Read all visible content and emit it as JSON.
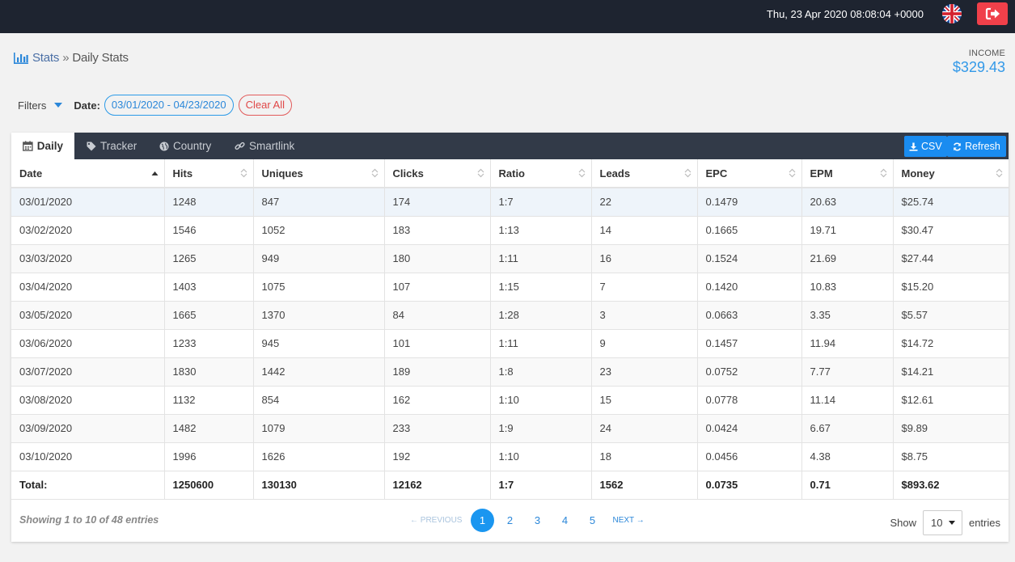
{
  "topbar": {
    "datetime": "Thu, 23 Apr 2020 08:08:04 +0000",
    "flag_icon": "uk-flag-icon",
    "logout_icon": "sign-out-icon"
  },
  "breadcrumb": {
    "icon": "bar-chart-icon",
    "root": "Stats",
    "separator": "»",
    "current": "Daily Stats"
  },
  "income": {
    "label": "INCOME",
    "value": "$329.43"
  },
  "filters": {
    "label": "Filters",
    "date_label": "Date:",
    "date_range": "03/01/2020 - 04/23/2020",
    "clear_all": "Clear All"
  },
  "tabs": [
    {
      "label": "Daily",
      "icon": "calendar-icon"
    },
    {
      "label": "Tracker",
      "icon": "tag-icon"
    },
    {
      "label": "Country",
      "icon": "globe-icon"
    },
    {
      "label": "Smartlink",
      "icon": "link-icon"
    }
  ],
  "buttons": {
    "csv": "CSV",
    "refresh": "Refresh"
  },
  "table": {
    "columns": [
      "Date",
      "Hits",
      "Uniques",
      "Clicks",
      "Ratio",
      "Leads",
      "EPC",
      "EPM",
      "Money"
    ],
    "rows": [
      [
        "03/01/2020",
        "1248",
        "847",
        "174",
        "1:7",
        "22",
        "0.1479",
        "20.63",
        "$25.74"
      ],
      [
        "03/02/2020",
        "1546",
        "1052",
        "183",
        "1:13",
        "14",
        "0.1665",
        "19.71",
        "$30.47"
      ],
      [
        "03/03/2020",
        "1265",
        "949",
        "180",
        "1:11",
        "16",
        "0.1524",
        "21.69",
        "$27.44"
      ],
      [
        "03/04/2020",
        "1403",
        "1075",
        "107",
        "1:15",
        "7",
        "0.1420",
        "10.83",
        "$15.20"
      ],
      [
        "03/05/2020",
        "1665",
        "1370",
        "84",
        "1:28",
        "3",
        "0.0663",
        "3.35",
        "$5.57"
      ],
      [
        "03/06/2020",
        "1233",
        "945",
        "101",
        "1:11",
        "9",
        "0.1457",
        "11.94",
        "$14.72"
      ],
      [
        "03/07/2020",
        "1830",
        "1442",
        "189",
        "1:8",
        "23",
        "0.0752",
        "7.77",
        "$14.21"
      ],
      [
        "03/08/2020",
        "1132",
        "854",
        "162",
        "1:10",
        "15",
        "0.0778",
        "11.14",
        "$12.61"
      ],
      [
        "03/09/2020",
        "1482",
        "1079",
        "233",
        "1:9",
        "24",
        "0.0424",
        "6.67",
        "$9.89"
      ],
      [
        "03/10/2020",
        "1996",
        "1626",
        "192",
        "1:10",
        "18",
        "0.0456",
        "4.38",
        "$8.75"
      ]
    ],
    "totals": [
      "Total:",
      "1250600",
      "130130",
      "12162",
      "1:7",
      "1562",
      "0.0735",
      "0.71",
      "$893.62"
    ]
  },
  "footer": {
    "info": "Showing 1 to 10 of 48 entries",
    "previous": "← PREVIOUS",
    "pages": [
      "1",
      "2",
      "3",
      "4",
      "5"
    ],
    "next": "NEXT →",
    "show_label": "Show",
    "page_size": "10",
    "entries_label": "entries"
  }
}
